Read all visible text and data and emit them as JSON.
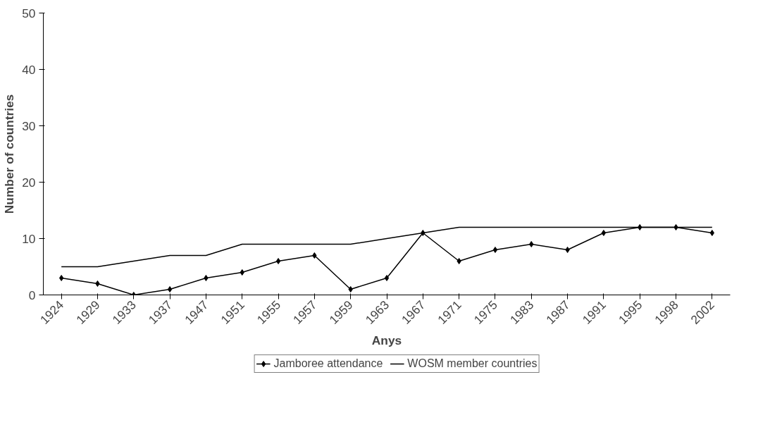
{
  "chart_data": {
    "type": "line",
    "xlabel": "Anys",
    "ylabel": "Number of countries",
    "categories": [
      "1924",
      "1929",
      "1933",
      "1937",
      "1947",
      "1951",
      "1955",
      "1957",
      "1959",
      "1963",
      "1967",
      "1971",
      "1975",
      "1983",
      "1987",
      "1991",
      "1995",
      "1998",
      "2002"
    ],
    "series": [
      {
        "name": "Jamboree attendance",
        "color": "#000000",
        "marker": "diamond",
        "values": [
          3,
          2,
          0,
          1,
          3,
          4,
          6,
          7,
          1,
          3,
          11,
          6,
          8,
          9,
          8,
          11,
          12,
          12,
          11
        ]
      },
      {
        "name": "WOSM member countries",
        "color": "#000000",
        "marker": "none",
        "values": [
          5,
          5,
          6,
          7,
          7,
          9,
          9,
          9,
          9,
          10,
          11,
          12,
          12,
          12,
          12,
          12,
          12,
          12,
          12
        ]
      }
    ],
    "ylim": [
      0,
      50
    ],
    "yticks": [
      0,
      10,
      20,
      30,
      40,
      50
    ],
    "grid": false,
    "legend": "bottom"
  }
}
